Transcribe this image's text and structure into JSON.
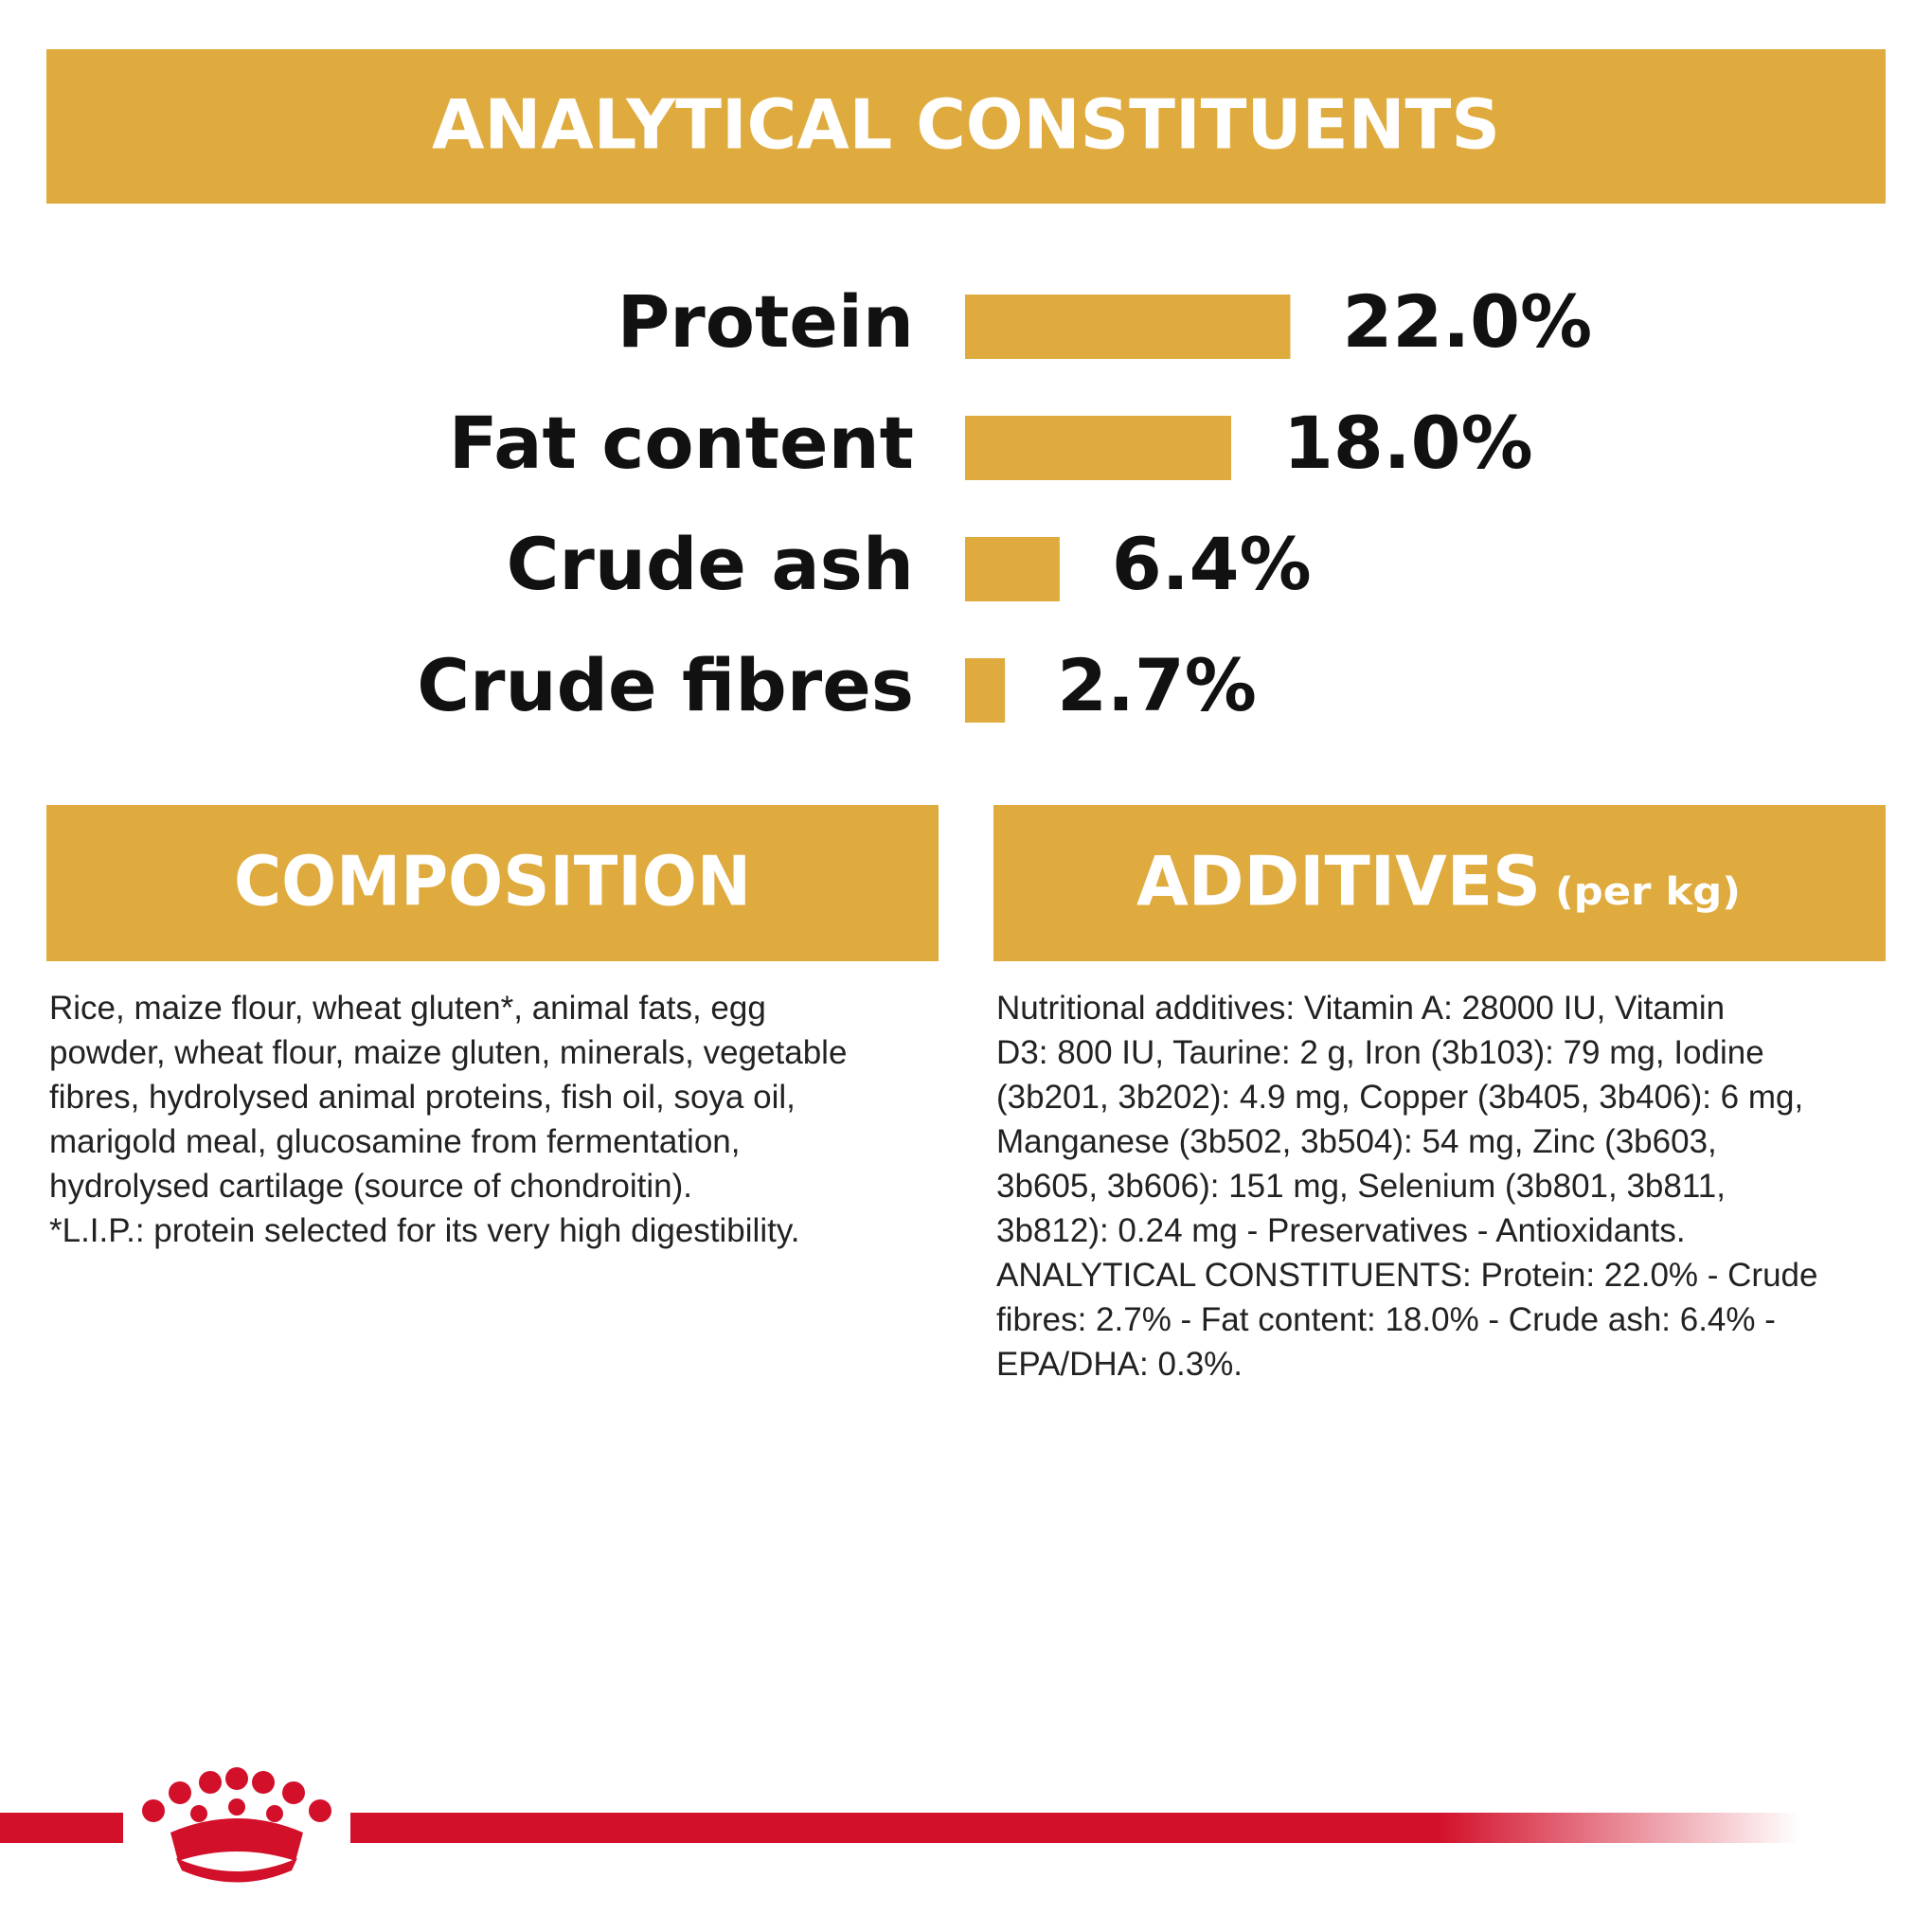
{
  "chart_data": {
    "type": "bar",
    "title": "ANALYTICAL CONSTITUENTS",
    "categories": [
      "Protein",
      "Fat content",
      "Crude ash",
      "Crude fibres"
    ],
    "values": [
      22.0,
      18.0,
      6.4,
      2.7
    ],
    "value_labels": [
      "22.0%",
      "18.0%",
      "6.4%",
      "2.7%"
    ],
    "color": "#dfab3e"
  },
  "composition": {
    "title": "COMPOSITION",
    "lines": [
      "Rice, maize flour, wheat gluten*, animal fats, egg",
      "powder, wheat flour, maize gluten, minerals, vegetable",
      "fibres, hydrolysed animal proteins, fish oil, soya oil,",
      "marigold meal, glucosamine from fermentation,",
      "hydrolysed cartilage (source of chondroitin).",
      "*L.I.P.: protein selected for its very high digestibility."
    ]
  },
  "additives": {
    "title": "ADDITIVES",
    "subtitle": "(per kg)",
    "lines": [
      "Nutritional additives: Vitamin A: 28000 IU, Vitamin",
      "D3: 800 IU, Taurine: 2 g, Iron (3b103): 79 mg, Iodine",
      "(3b201, 3b202): 4.9 mg, Copper (3b405, 3b406): 6 mg,",
      "Manganese (3b502, 3b504): 54 mg, Zinc (3b603,",
      "3b605, 3b606): 151 mg, Selenium (3b801, 3b811,",
      "3b812): 0.24 mg - Preservatives - Antioxidants.",
      "ANALYTICAL CONSTITUENTS: Protein: 22.0% - Crude",
      "fibres: 2.7% - Fat content: 18.0% - Crude ash: 6.4% -",
      "EPA/DHA: 0.3%."
    ]
  }
}
